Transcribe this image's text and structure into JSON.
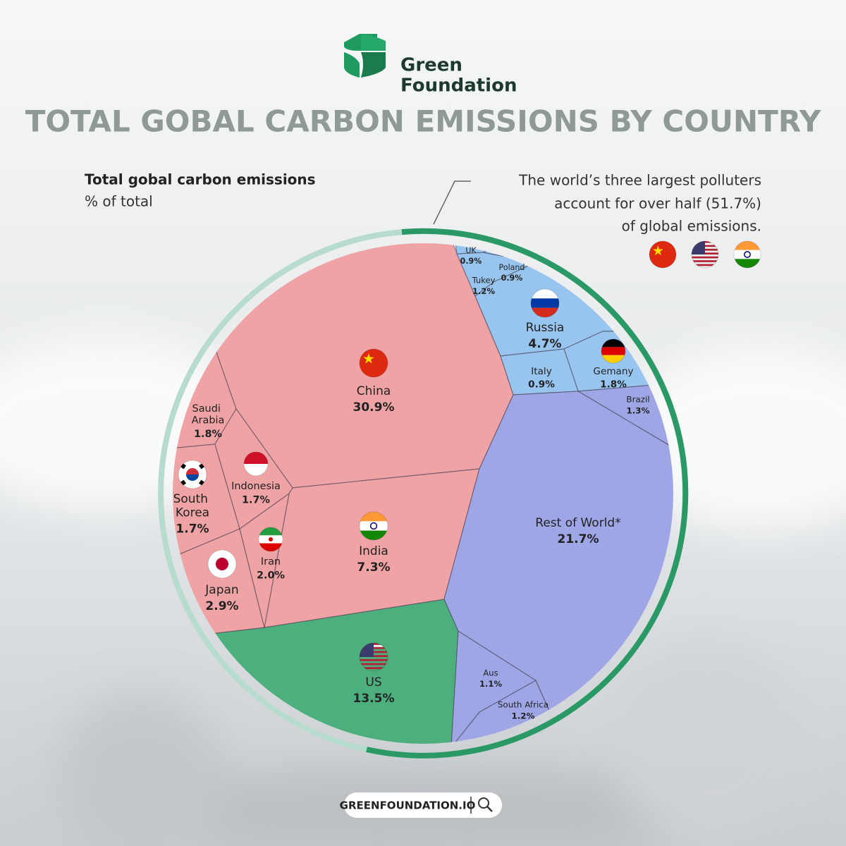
{
  "logo": {
    "line1": "Green",
    "line2": "Foundation"
  },
  "chart_data": {
    "type": "voronoi",
    "title": "TOTAL GOBAL CARBON EMISSIONS BY COUNTRY",
    "subtitle": "Total gobal carbon emissions",
    "unit_label": "% of total",
    "annotation": [
      "The world’s three largest polluters",
      "account for over half (51.7%)",
      "of global emissions."
    ],
    "categories": [
      "China",
      "US",
      "India",
      "Russia",
      "Japan",
      "Iran",
      "Saudi Arabia",
      "South Korea",
      "Indonesia",
      "Gemany",
      "Brazil",
      "Tukey",
      "South Africa",
      "Aus",
      "UK",
      "Poland",
      "Italy",
      "Rest of World*"
    ],
    "values": [
      30.9,
      13.5,
      7.3,
      4.7,
      2.9,
      2.0,
      1.8,
      1.7,
      1.7,
      1.8,
      1.3,
      1.2,
      1.2,
      1.1,
      0.9,
      0.9,
      0.9,
      21.7
    ],
    "value_labels": [
      "30.9%",
      "13.5%",
      "7.3%",
      "4.7%",
      "2.9%",
      "2.0%",
      "1.8%",
      "1.7%",
      "1.7%",
      "1.8%",
      "1.3%",
      "1.2%",
      "1.2%",
      "1.1%",
      "0.9%",
      "0.9%",
      "0.9%",
      "21.7%"
    ],
    "colors": [
      "#f0a3a5",
      "#4caf7d",
      "#f0a3a5",
      "#98c5ef",
      "#f0a3a5",
      "#f0a3a5",
      "#f0a3a5",
      "#f0a3a5",
      "#f0a3a5",
      "#98c5ef",
      "#9ea6e6",
      "#98c5ef",
      "#9ea6e6",
      "#9ea6e6",
      "#98c5ef",
      "#98c5ef",
      "#98c5ef",
      "#9ea6e6"
    ]
  },
  "footer": "GREENFOUNDATION.IO"
}
